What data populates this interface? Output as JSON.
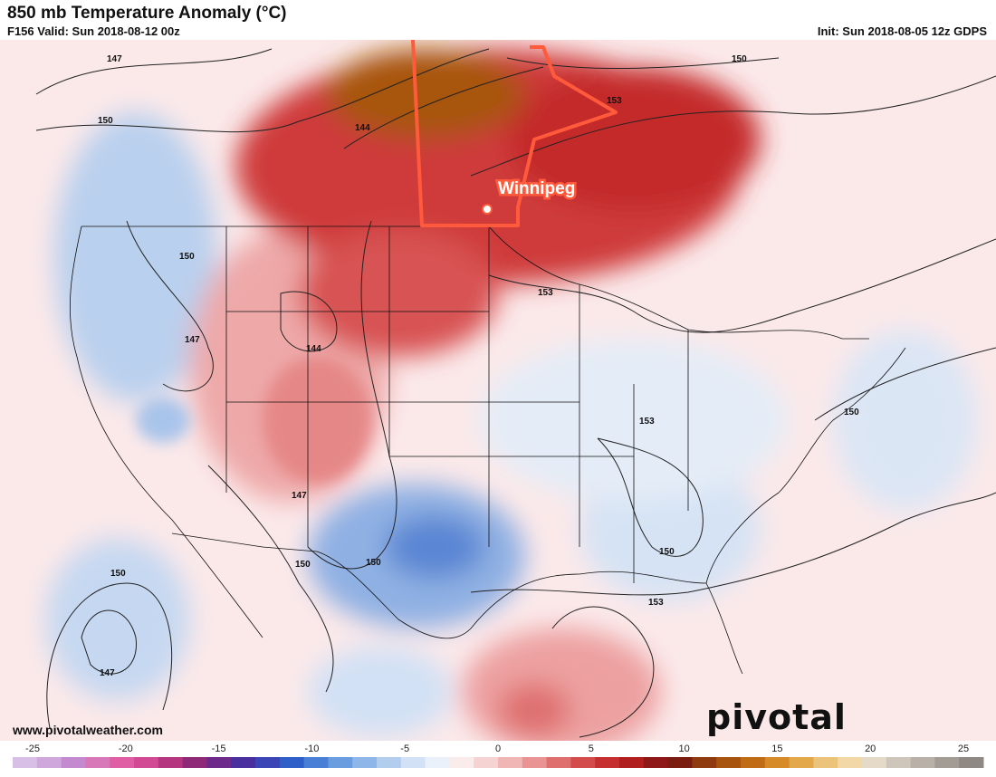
{
  "header": {
    "title": "850 mb Temperature Anomaly (°C)",
    "valid": "F156 Valid: Sun 2018-08-12 00z",
    "init": "Init: Sun 2018-08-05 12z GDPS"
  },
  "map": {
    "city_label": "Winnipeg",
    "contour_labels": [
      "147",
      "150",
      "144",
      "153",
      "150",
      "153",
      "150",
      "147",
      "144",
      "147",
      "150",
      "150",
      "153",
      "150",
      "153",
      "150",
      "147",
      "150"
    ]
  },
  "footer": {
    "site": "www.pivotalweather.com",
    "brand": "pivotal weather"
  },
  "colorbar": {
    "ticks": [
      "-25",
      "-20",
      "-15",
      "-10",
      "-5",
      "0",
      "5",
      "10",
      "15",
      "20",
      "25"
    ],
    "colors": [
      "#d7bfe6",
      "#cfa7dc",
      "#c48ad0",
      "#d978b8",
      "#e05fa4",
      "#d24a93",
      "#b5357f",
      "#8f2a78",
      "#6e2a8a",
      "#4a2f9e",
      "#3b45b5",
      "#2e5fc9",
      "#4a7fd6",
      "#6a9ce0",
      "#8fb6e8",
      "#b3cdef",
      "#d2e1f5",
      "#ebf1fa",
      "#fbecec",
      "#f6d3d3",
      "#f0b5b5",
      "#e99393",
      "#df6f6f",
      "#d44b4b",
      "#c62f2f",
      "#b01e1e",
      "#8e1717",
      "#7a1c10",
      "#8f3a0f",
      "#a8540f",
      "#c06c16",
      "#d68a28",
      "#e3a84a",
      "#ecc37a",
      "#f1d8a6",
      "#e5d9c8",
      "#cfc6bb",
      "#b9b1a8",
      "#a39c95",
      "#8f8984"
    ]
  }
}
